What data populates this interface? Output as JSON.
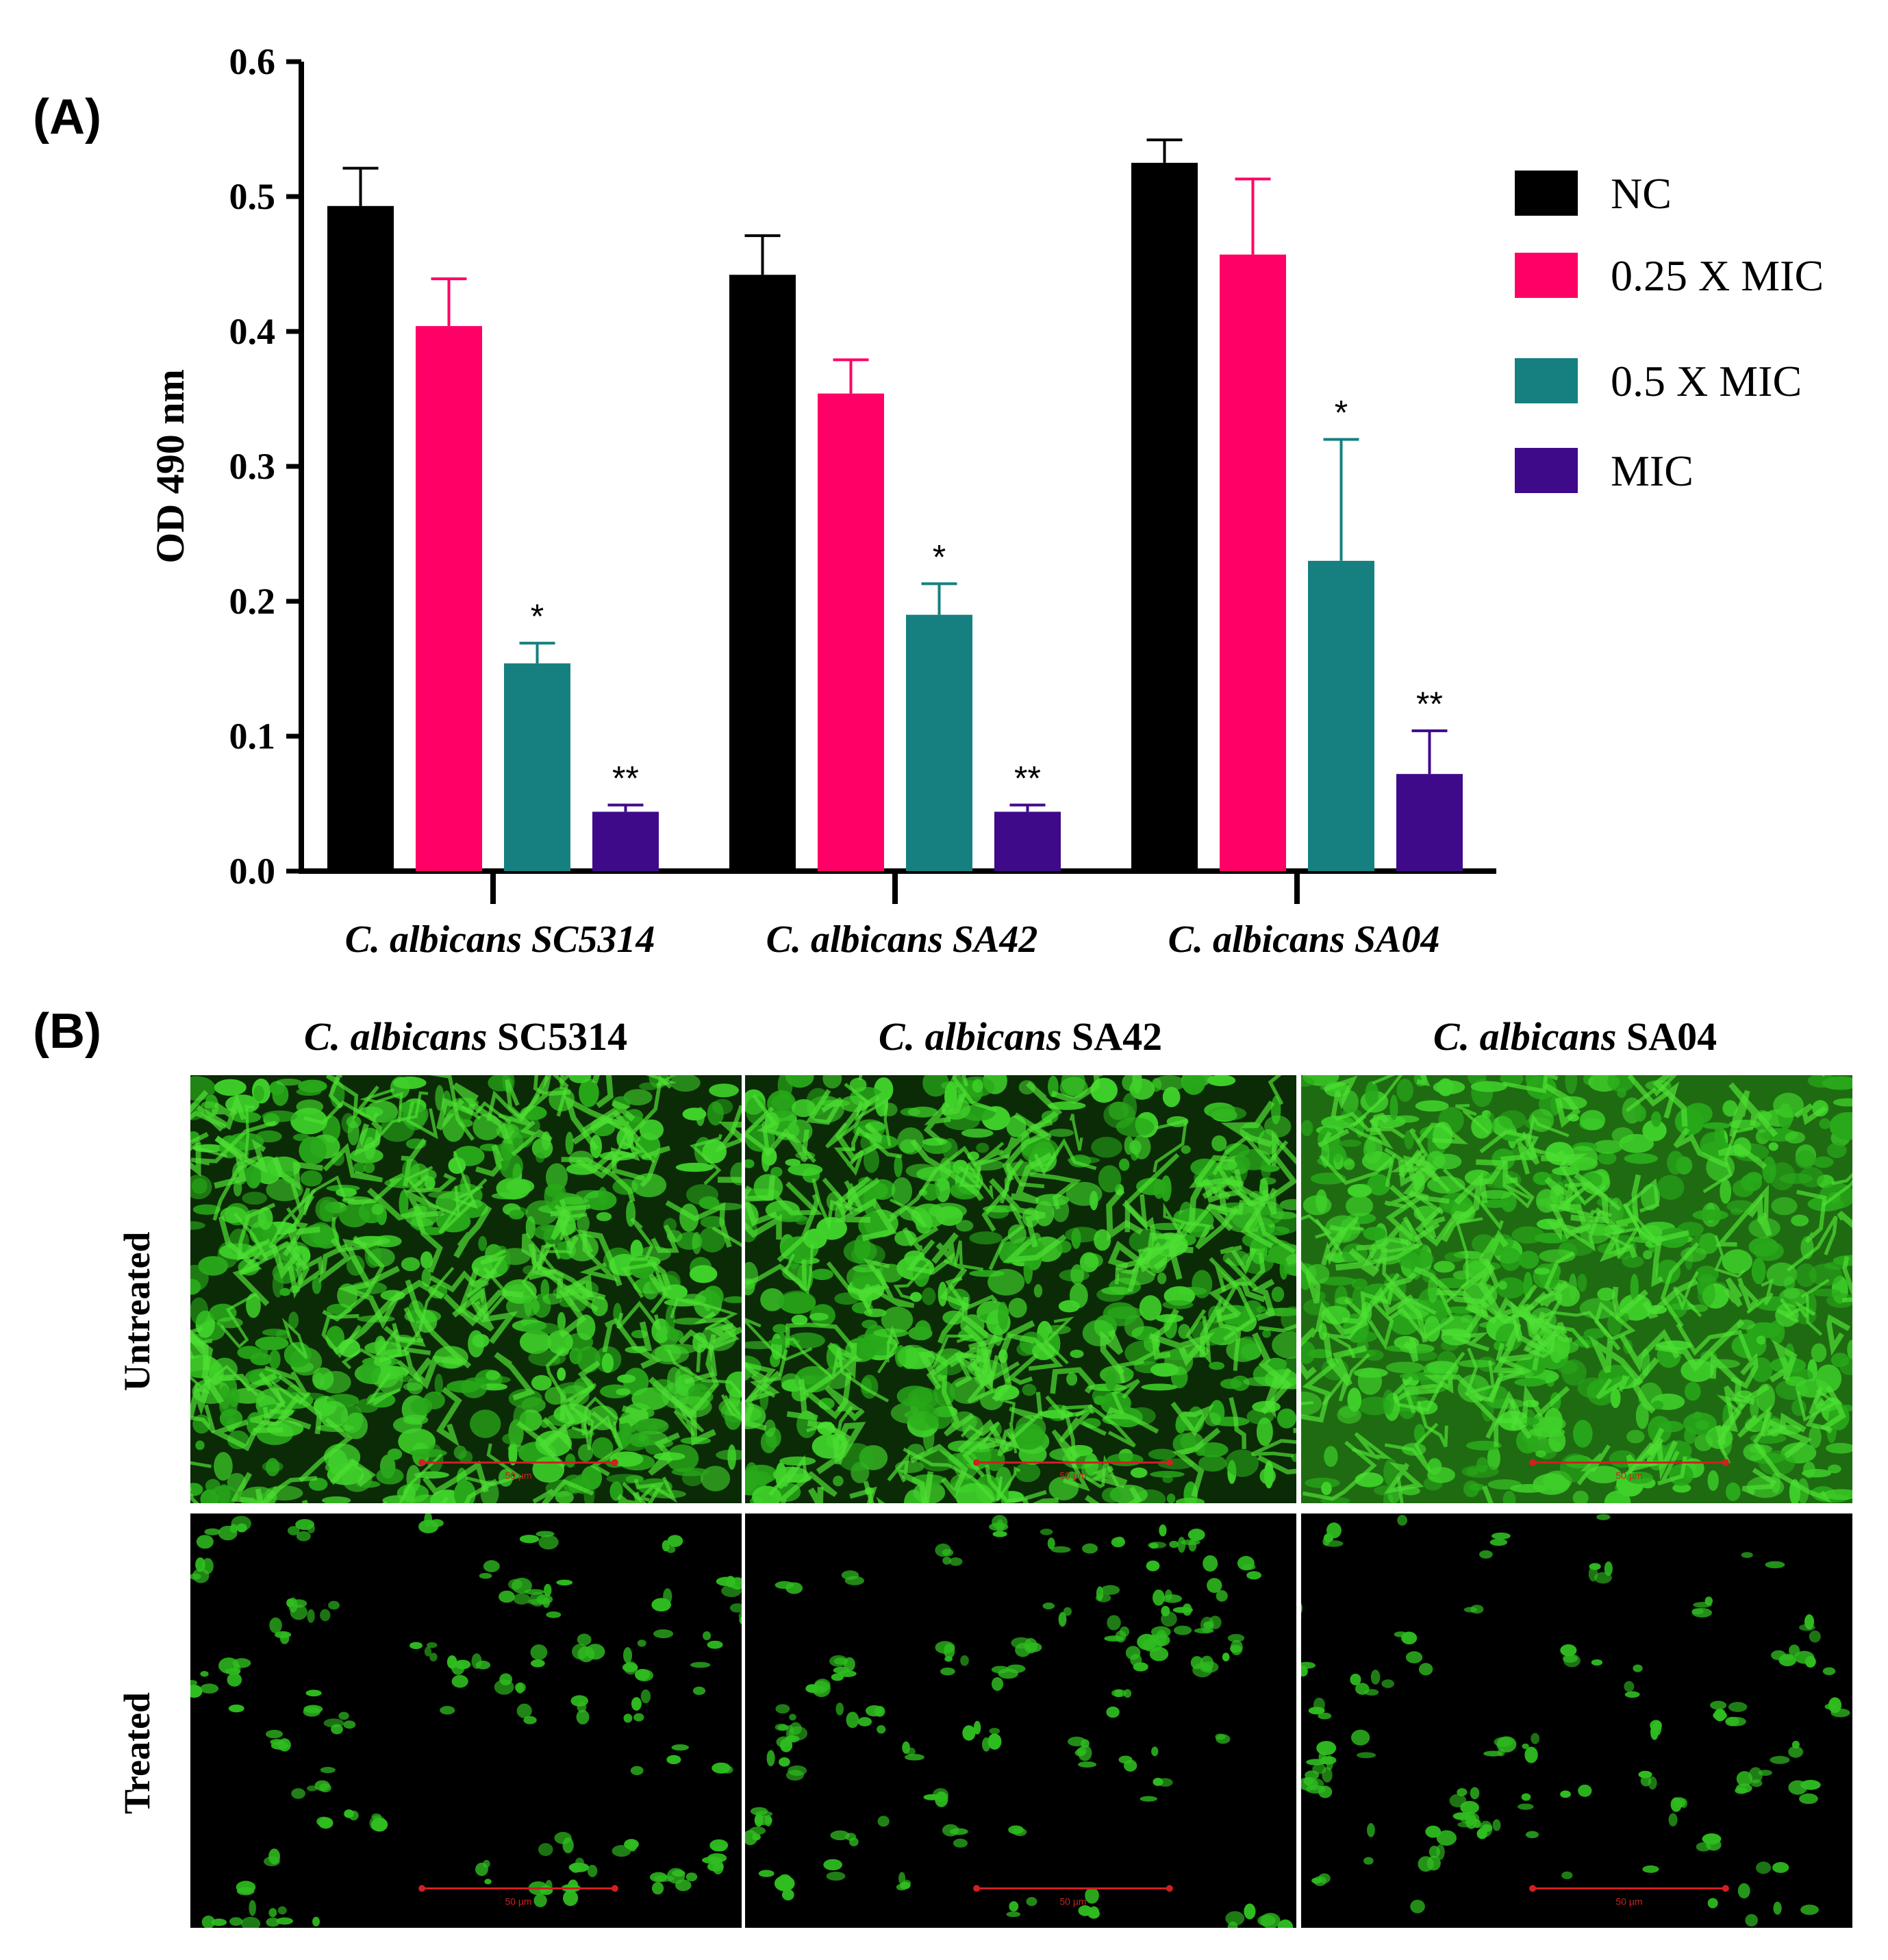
{
  "panel_a": {
    "label": "(A)"
  },
  "panel_b": {
    "label": "(B)",
    "columns": [
      {
        "italic": "C. albicans",
        "strain": "SC5314"
      },
      {
        "italic": "C. albicans",
        "strain": "SA42"
      },
      {
        "italic": "C. albicans",
        "strain": "SA04"
      }
    ],
    "rows": [
      "Untreated",
      "Treated"
    ],
    "scale_bar": "50 µm"
  },
  "chart_data": {
    "type": "bar",
    "title": "",
    "xlabel": "",
    "ylabel": "OD 490 nm",
    "ylim": [
      0.0,
      0.6
    ],
    "yticks": [
      "0.0",
      "0.1",
      "0.2",
      "0.3",
      "0.4",
      "0.5",
      "0.6"
    ],
    "categories": [
      "C. albicans SC5314",
      "C. albicans SA42",
      "C. albicans SA04"
    ],
    "series": [
      {
        "name": "NC",
        "color": "#000000",
        "values": [
          0.493,
          0.442,
          0.525
        ],
        "errors": [
          0.028,
          0.029,
          0.017
        ],
        "sig": [
          "",
          "",
          ""
        ]
      },
      {
        "name": "0.25 X MIC",
        "color": "#ff0066",
        "values": [
          0.404,
          0.354,
          0.457
        ],
        "errors": [
          0.035,
          0.025,
          0.056
        ],
        "sig": [
          "",
          "",
          ""
        ]
      },
      {
        "name": "0.5 X MIC",
        "color": "#168080",
        "values": [
          0.154,
          0.19,
          0.23
        ],
        "errors": [
          0.015,
          0.023,
          0.09
        ],
        "sig": [
          "*",
          "*",
          "*"
        ]
      },
      {
        "name": "MIC",
        "color": "#3f0a8a",
        "values": [
          0.044,
          0.044,
          0.072
        ],
        "errors": [
          0.005,
          0.005,
          0.032
        ],
        "sig": [
          "**",
          "**",
          "**"
        ]
      }
    ],
    "legend_position": "right"
  }
}
